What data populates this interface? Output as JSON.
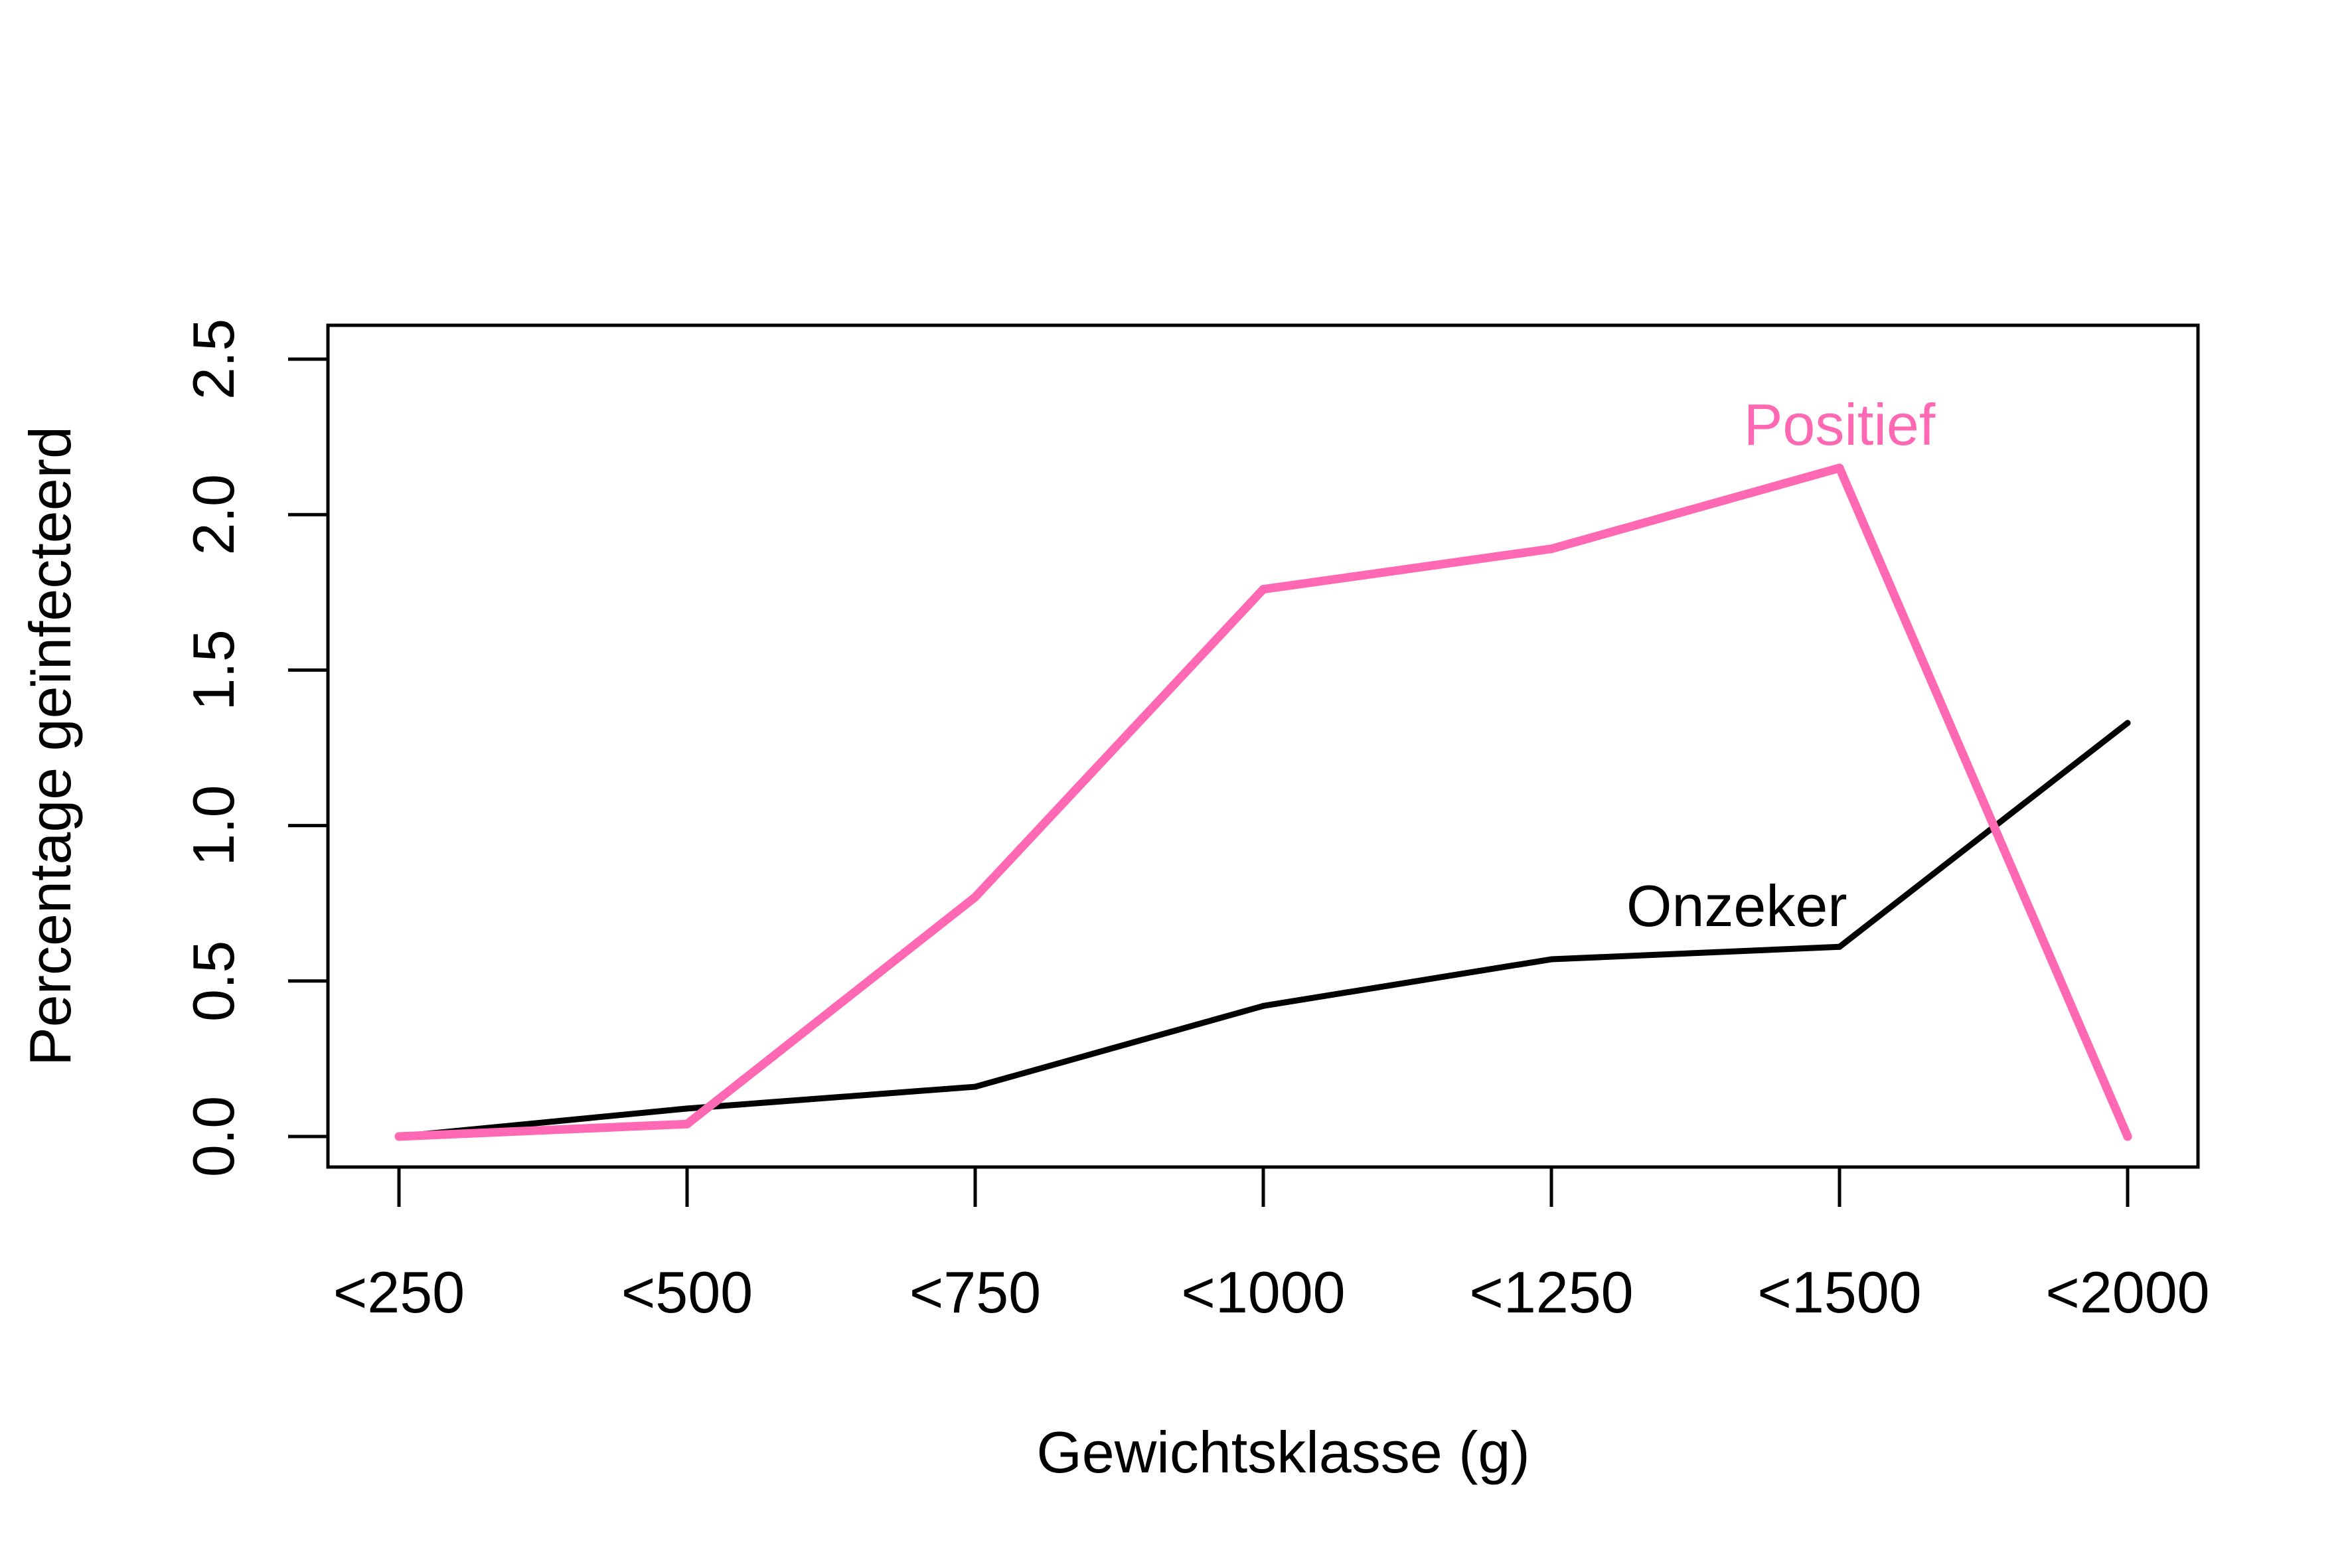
{
  "chart_data": {
    "type": "line",
    "title": "",
    "xlabel": "Gewichtsklasse (g)",
    "ylabel": "Percentage geïnfecteerd",
    "categories": [
      "<250",
      "<500",
      "<750",
      "<1000",
      "<1250",
      "<1500",
      "<2000"
    ],
    "yticks": [
      "0.0",
      "0.5",
      "1.0",
      "1.5",
      "2.0",
      "2.5"
    ],
    "ylim": [
      0,
      2.5
    ],
    "grid": false,
    "legend": "none",
    "series": [
      {
        "name": "Onzeker",
        "color": "#000000",
        "values": [
          0.0,
          0.09,
          0.16,
          0.42,
          0.57,
          0.61,
          1.33
        ]
      },
      {
        "name": "Positief",
        "color": "#ff69b4",
        "values": [
          0.0,
          0.04,
          0.77,
          1.76,
          1.89,
          2.15,
          0.0
        ]
      }
    ]
  }
}
